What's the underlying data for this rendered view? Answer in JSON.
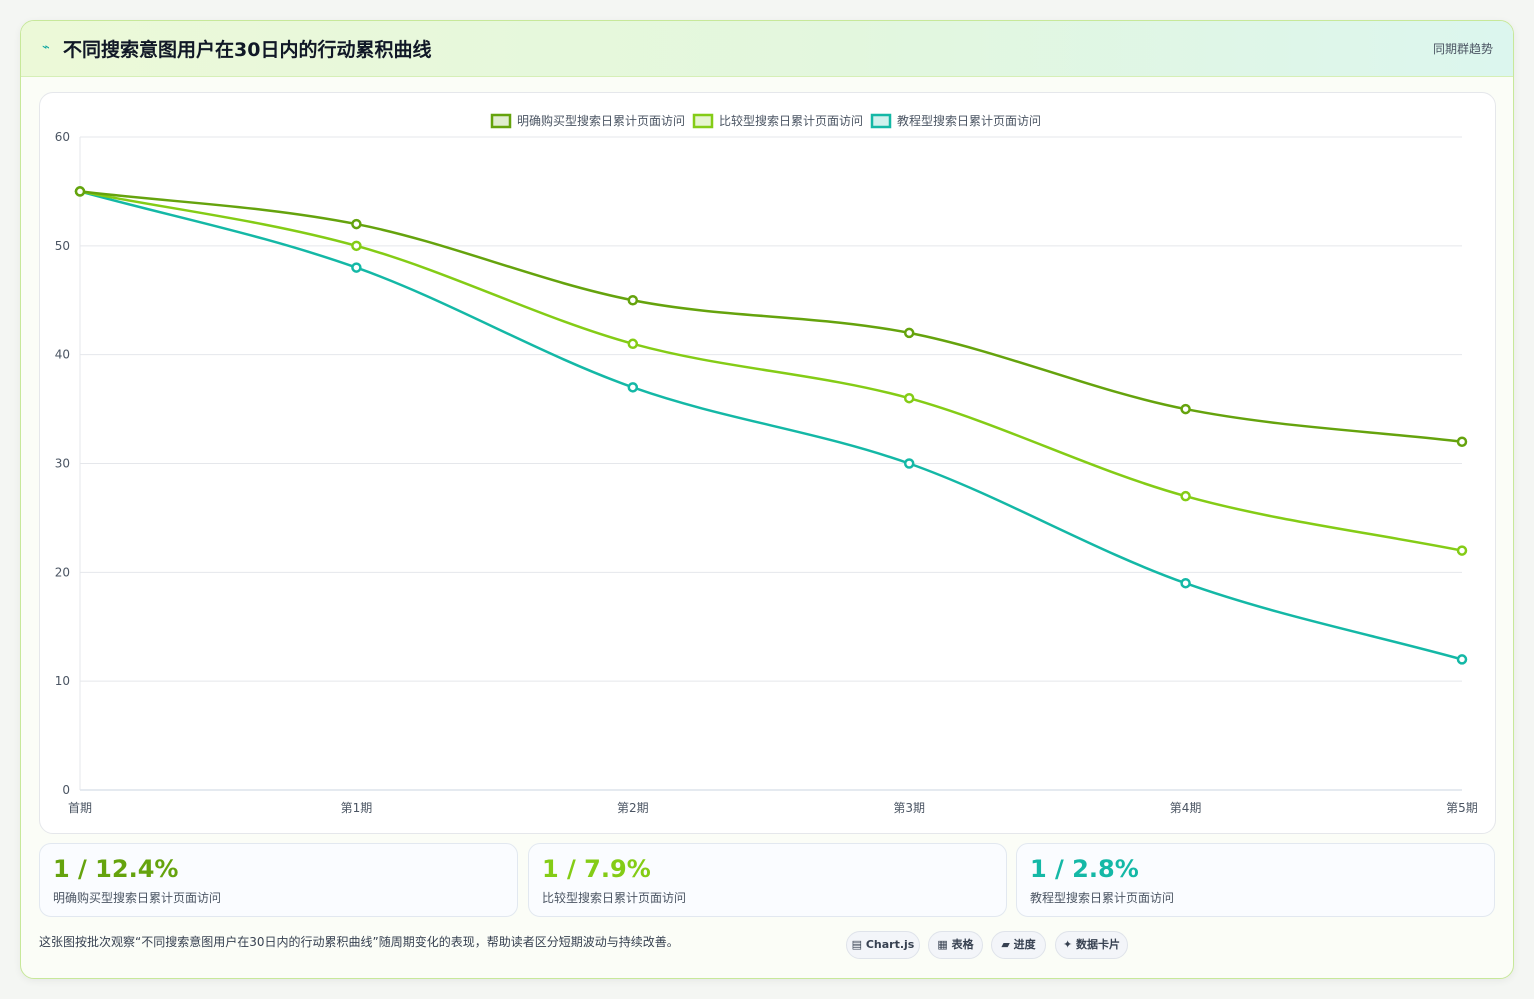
{
  "header": {
    "icon": "trend-line-icon",
    "title": "不同搜索意图用户在30日内的行动累积曲线",
    "tag": "同期群趋势"
  },
  "colors": {
    "series1": "#65a30d",
    "series2": "#84cc16",
    "series3": "#14b8a6"
  },
  "chart_data": {
    "type": "line",
    "x": [
      "首期",
      "第1期",
      "第2期",
      "第3期",
      "第4期",
      "第5期"
    ],
    "ylim": [
      0,
      60
    ],
    "yticks": [
      0,
      10,
      20,
      30,
      40,
      50,
      60
    ],
    "grid": true,
    "legend_position": "top",
    "series": [
      {
        "name": "明确购买型搜索日累计页面访问",
        "values": [
          55,
          52,
          45,
          42,
          35,
          32
        ]
      },
      {
        "name": "比较型搜索日累计页面访问",
        "values": [
          55,
          50,
          41,
          36,
          27,
          22
        ]
      },
      {
        "name": "教程型搜索日累计页面访问",
        "values": [
          55,
          48,
          37,
          30,
          19,
          12
        ]
      }
    ]
  },
  "stats": [
    {
      "value": "1 / 12.4%",
      "label": "明确购买型搜索日累计页面访问"
    },
    {
      "value": "1 / 7.9%",
      "label": "比较型搜索日累计页面访问"
    },
    {
      "value": "1 / 2.8%",
      "label": "教程型搜索日累计页面访问"
    }
  ],
  "footnote": "这张图按批次观察“不同搜索意图用户在30日内的行动累积曲线”随周期变化的表现，帮助读者区分短期波动与持续改善。",
  "pills": [
    {
      "icon": "chart-icon",
      "label": "▤ Chart.js"
    },
    {
      "icon": "table-icon",
      "label": "▦ 表格"
    },
    {
      "icon": "progress-icon",
      "label": "▰ 进度"
    },
    {
      "icon": "card-icon",
      "label": "✦ 数据卡片"
    }
  ]
}
